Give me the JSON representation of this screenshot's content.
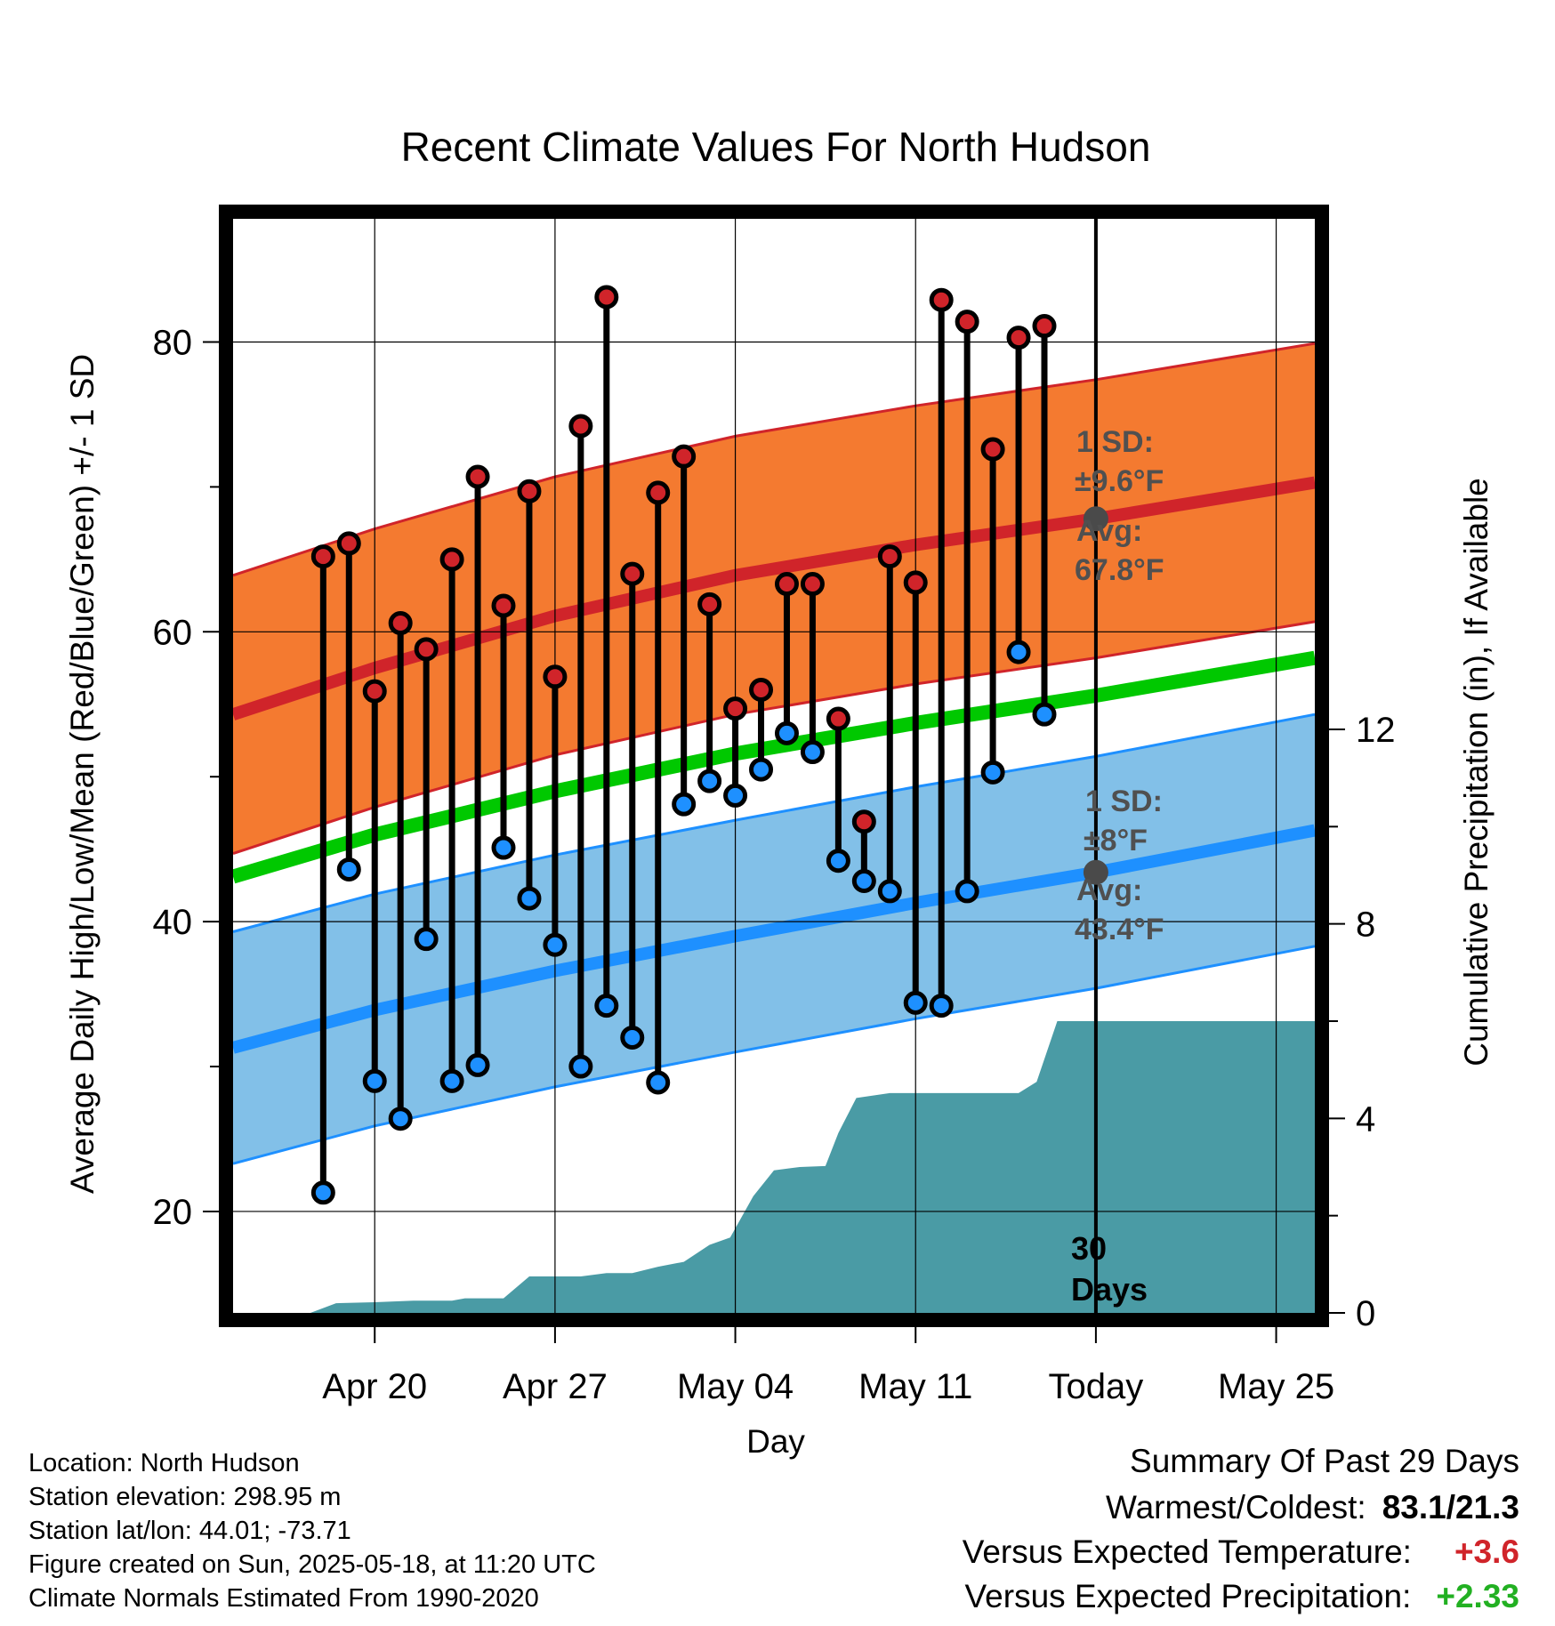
{
  "chart_data": {
    "type": "line",
    "title": "Recent Climate Values For North Hudson",
    "xlabel": "Day",
    "ylabel_left": "Average Daily High/Low/Mean (Red/Blue/Green) +/- 1 SD",
    "ylabel_right": "Cumulative Precipitation (in), If Available",
    "ylim_left": [
      13,
      88.5
    ],
    "ylim_right": [
      0,
      22.5
    ],
    "left_ticks": [
      "20",
      "40",
      "60",
      "80"
    ],
    "right_ticks": [
      "0",
      "4",
      "8",
      "12"
    ],
    "x_range_days": [
      -33.5,
      8.5
    ],
    "x_ticks": [
      {
        "label": "Apr 20",
        "day": -28
      },
      {
        "label": "Apr 27",
        "day": -21
      },
      {
        "label": "May 04",
        "day": -14
      },
      {
        "label": "May 11",
        "day": -7
      },
      {
        "label": "Today",
        "day": 0
      },
      {
        "label": "May 25",
        "day": 7
      }
    ],
    "today_label": "30 Days",
    "daily": [
      {
        "day": -30,
        "high": 65.2,
        "low": 21.3
      },
      {
        "day": -29,
        "high": 66.1,
        "low": 43.6
      },
      {
        "day": -28,
        "high": 55.9,
        "low": 29.0
      },
      {
        "day": -27,
        "high": 60.6,
        "low": 26.4
      },
      {
        "day": -26,
        "high": 58.8,
        "low": 38.8
      },
      {
        "day": -25,
        "high": 65.0,
        "low": 29.0
      },
      {
        "day": -24,
        "high": 70.7,
        "low": 30.1
      },
      {
        "day": -23,
        "high": 61.8,
        "low": 45.1
      },
      {
        "day": -22,
        "high": 69.7,
        "low": 41.6
      },
      {
        "day": -21,
        "high": 56.9,
        "low": 38.4
      },
      {
        "day": -20,
        "high": 74.2,
        "low": 30.0
      },
      {
        "day": -19,
        "high": 83.1,
        "low": 34.2
      },
      {
        "day": -18,
        "high": 64.0,
        "low": 32.0
      },
      {
        "day": -17,
        "high": 69.6,
        "low": 28.9
      },
      {
        "day": -16,
        "high": 72.1,
        "low": 48.1
      },
      {
        "day": -15,
        "high": 61.9,
        "low": 49.7
      },
      {
        "day": -14,
        "high": 54.7,
        "low": 48.7
      },
      {
        "day": -13,
        "high": 56.0,
        "low": 50.5
      },
      {
        "day": -12,
        "high": 63.3,
        "low": 53.0
      },
      {
        "day": -11,
        "high": 63.3,
        "low": 51.7
      },
      {
        "day": -10,
        "high": 54.0,
        "low": 44.2
      },
      {
        "day": -9,
        "high": 46.9,
        "low": 42.8
      },
      {
        "day": -8,
        "high": 65.2,
        "low": 42.1
      },
      {
        "day": -7,
        "high": 63.4,
        "low": 34.4
      },
      {
        "day": -6,
        "high": 82.9,
        "low": 34.2
      },
      {
        "day": -5,
        "high": 81.4,
        "low": 42.1
      },
      {
        "day": -4,
        "high": 72.6,
        "low": 50.3
      },
      {
        "day": -3,
        "high": 80.3,
        "low": 58.6
      },
      {
        "day": -2,
        "high": 81.1,
        "low": 54.3
      }
    ],
    "normals": {
      "days": [
        -33.5,
        -28,
        -21,
        -14,
        -7,
        0,
        8.5
      ],
      "high_avg": [
        54.3,
        57.5,
        61.1,
        63.9,
        66.0,
        67.8,
        70.3
      ],
      "high_sd": 9.6,
      "low_avg": [
        31.3,
        33.9,
        36.6,
        39.0,
        41.3,
        43.4,
        46.3
      ],
      "low_sd": 8.0,
      "mean_avg": [
        43.1,
        46.0,
        49.0,
        51.6,
        53.7,
        55.6,
        58.2
      ]
    },
    "precip_cumulative": {
      "days": [
        -33.5,
        -30.5,
        -29.5,
        -28,
        -26.5,
        -25,
        -24.5,
        -23,
        -22,
        -21,
        -20,
        -19,
        -18,
        -17,
        -16,
        -15,
        -14.2,
        -13.3,
        -12.5,
        -11.5,
        -10.5,
        -10,
        -9.3,
        -8,
        -7,
        -6,
        -5,
        -4,
        -3,
        -2.3,
        -1.5,
        8.5
      ],
      "values": [
        0,
        0,
        0.2,
        0.22,
        0.25,
        0.25,
        0.3,
        0.3,
        0.75,
        0.75,
        0.75,
        0.82,
        0.82,
        0.95,
        1.05,
        1.4,
        1.55,
        2.4,
        2.93,
        3.0,
        3.02,
        3.7,
        4.42,
        4.52,
        4.52,
        4.52,
        4.52,
        4.52,
        4.52,
        4.75,
        6.0,
        6.0
      ]
    },
    "annotations": {
      "high_sd": "1 SD:",
      "high_sd_value": "±9.6°F",
      "high_avg": "Avg:",
      "high_avg_value": "67.8°F",
      "low_sd": "1 SD:",
      "low_sd_value": "±8°F",
      "low_avg": "Avg:",
      "low_avg_value": "43.4°F"
    },
    "colors": {
      "high_band": "#F47A30",
      "high_line": "#D0242A",
      "low_band": "#82C0E8",
      "low_line": "#1E90FF",
      "mean_line": "#00C800",
      "precip": "#4A9BA5",
      "high_point": "#D0242A",
      "low_point": "#1E90FF",
      "annotation": "#505050",
      "positive_temp": "#D0242A",
      "positive_precip": "#22B022"
    }
  },
  "meta": {
    "location": "Location: North Hudson",
    "elevation": "Station elevation: 298.95 m",
    "latlon": "Station lat/lon: 44.01; -73.71",
    "created": "Figure created on Sun, 2025-05-18, at 11:20 UTC",
    "normals": "Climate Normals Estimated From 1990-2020"
  },
  "summary": {
    "heading": "Summary Of Past 29 Days",
    "warm_cold_label": "Warmest/Coldest:",
    "warm_cold_value": "83.1/21.3",
    "temp_label": "Versus Expected Temperature:",
    "temp_value": "+3.6",
    "precip_label": "Versus Expected Precipitation:",
    "precip_value": "+2.33"
  }
}
